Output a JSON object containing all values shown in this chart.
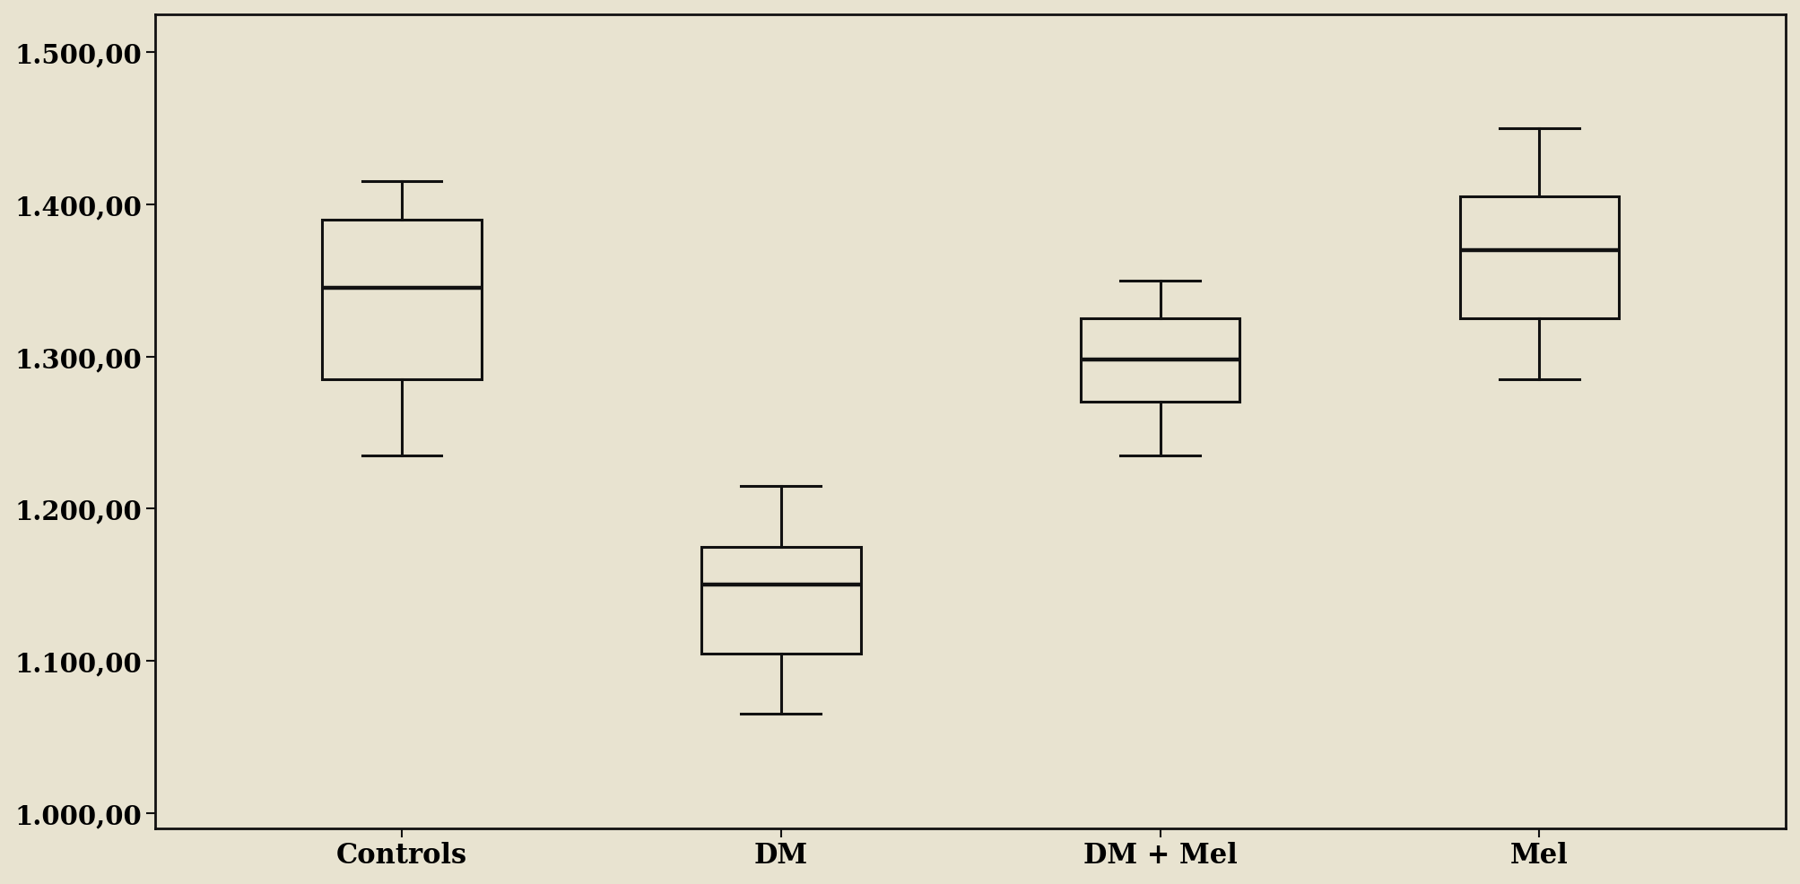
{
  "categories": [
    "Controls",
    "DM",
    "DM + Mel",
    "Mel"
  ],
  "boxes": [
    {
      "whislo": 1235,
      "q1": 1285,
      "med": 1345,
      "q3": 1390,
      "whishi": 1415
    },
    {
      "whislo": 1065,
      "q1": 1105,
      "med": 1150,
      "q3": 1175,
      "whishi": 1215
    },
    {
      "whislo": 1235,
      "q1": 1270,
      "med": 1298,
      "q3": 1325,
      "whishi": 1350
    },
    {
      "whislo": 1285,
      "q1": 1325,
      "med": 1370,
      "q3": 1405,
      "whishi": 1450
    }
  ],
  "ylim": [
    990,
    1525
  ],
  "yticks": [
    1000,
    1100,
    1200,
    1300,
    1400,
    1500
  ],
  "ytick_labels": [
    "1.000,00",
    "1.100,00",
    "1.200,00",
    "1.300,00",
    "1.400,00",
    "1.500,00"
  ],
  "background_color": "#e8e3d0",
  "plot_bg_color": "#e8e3d0",
  "box_facecolor": "#e8e3d0",
  "box_edgecolor": "#111111",
  "linewidth": 2.2,
  "figsize": [
    20.08,
    9.87
  ],
  "dpi": 100,
  "spine_linewidth": 2.0,
  "tick_fontsize": 21,
  "xlabel_fontsize": 22
}
